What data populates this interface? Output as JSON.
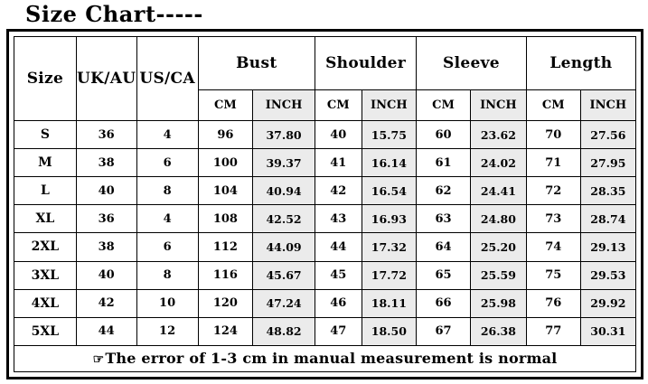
{
  "title": "Size Chart-----",
  "table": {
    "header": {
      "size": "Size",
      "uk_au": "UK/AU",
      "us_ca": "US/CA",
      "groups": [
        {
          "label": "Bust"
        },
        {
          "label": "Shoulder"
        },
        {
          "label": "Sleeve"
        },
        {
          "label": "Length"
        }
      ],
      "cm": "CM",
      "inch": "INCH"
    },
    "rows": [
      [
        "S",
        "36",
        "4",
        "96",
        "37.80",
        "40",
        "15.75",
        "60",
        "23.62",
        "70",
        "27.56"
      ],
      [
        "M",
        "38",
        "6",
        "100",
        "39.37",
        "41",
        "16.14",
        "61",
        "24.02",
        "71",
        "27.95"
      ],
      [
        "L",
        "40",
        "8",
        "104",
        "40.94",
        "42",
        "16.54",
        "62",
        "24.41",
        "72",
        "28.35"
      ],
      [
        "XL",
        "36",
        "4",
        "108",
        "42.52",
        "43",
        "16.93",
        "63",
        "24.80",
        "73",
        "28.74"
      ],
      [
        "2XL",
        "38",
        "6",
        "112",
        "44.09",
        "44",
        "17.32",
        "64",
        "25.20",
        "74",
        "29.13"
      ],
      [
        "3XL",
        "40",
        "8",
        "116",
        "45.67",
        "45",
        "17.72",
        "65",
        "25.59",
        "75",
        "29.53"
      ],
      [
        "4XL",
        "42",
        "10",
        "120",
        "47.24",
        "46",
        "18.11",
        "66",
        "25.98",
        "76",
        "29.92"
      ],
      [
        "5XL",
        "44",
        "12",
        "124",
        "48.82",
        "47",
        "18.50",
        "67",
        "26.38",
        "77",
        "30.31"
      ]
    ]
  },
  "footer": {
    "icon": "☞",
    "note": "The error of 1-3 cm in manual measurement is normal"
  },
  "colors": {
    "inch_column_bg": "#ebebeb",
    "border": "#000000",
    "text": "#000000",
    "background": "#ffffff"
  }
}
